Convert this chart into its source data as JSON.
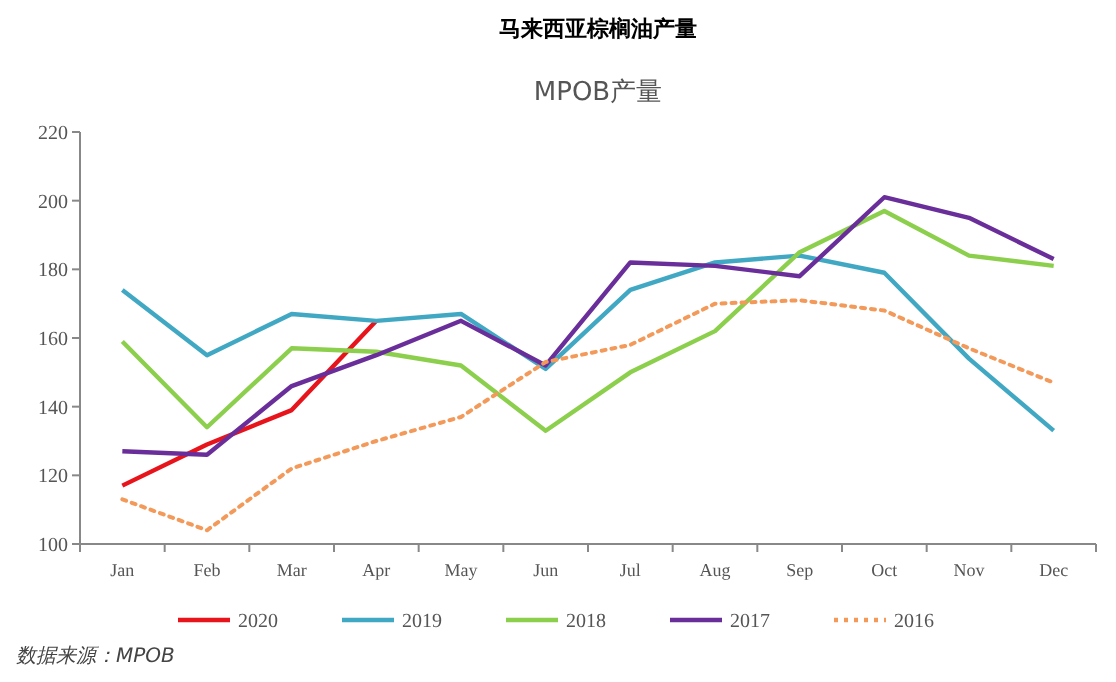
{
  "chart_data": {
    "type": "line",
    "title": "马来西亚棕榈油产量",
    "subtitle": "MPOB产量",
    "categories": [
      "Jan",
      "Feb",
      "Mar",
      "Apr",
      "May",
      "Jun",
      "Jul",
      "Aug",
      "Sep",
      "Oct",
      "Nov",
      "Dec"
    ],
    "series": [
      {
        "name": "2020",
        "color": "#e8141c",
        "values": [
          117,
          129,
          139,
          165,
          null,
          null,
          null,
          null,
          null,
          null,
          null,
          null
        ]
      },
      {
        "name": "2019",
        "color": "#41a8c4",
        "values": [
          174,
          155,
          167,
          165,
          167,
          151,
          174,
          182,
          184,
          179,
          154,
          133
        ]
      },
      {
        "name": "2018",
        "color": "#8ccf4d",
        "values": [
          159,
          134,
          157,
          156,
          152,
          133,
          150,
          162,
          185,
          197,
          184,
          181
        ]
      },
      {
        "name": "2017",
        "color": "#6a2e9a",
        "values": [
          127,
          126,
          146,
          155,
          165,
          152,
          182,
          181,
          178,
          201,
          195,
          183
        ]
      },
      {
        "name": "2016",
        "color": "#f39a5a",
        "line_style": "dotted",
        "values": [
          113,
          104,
          122,
          130,
          137,
          153,
          158,
          170,
          171,
          168,
          157,
          147
        ]
      }
    ],
    "ylim": [
      100,
      220
    ],
    "yticks": [
      100,
      120,
      140,
      160,
      180,
      200,
      220
    ],
    "grid": false,
    "legend": "bottom",
    "marker": "none",
    "line_style": "solid",
    "annotations": [
      "数据来源：MPOB"
    ]
  }
}
